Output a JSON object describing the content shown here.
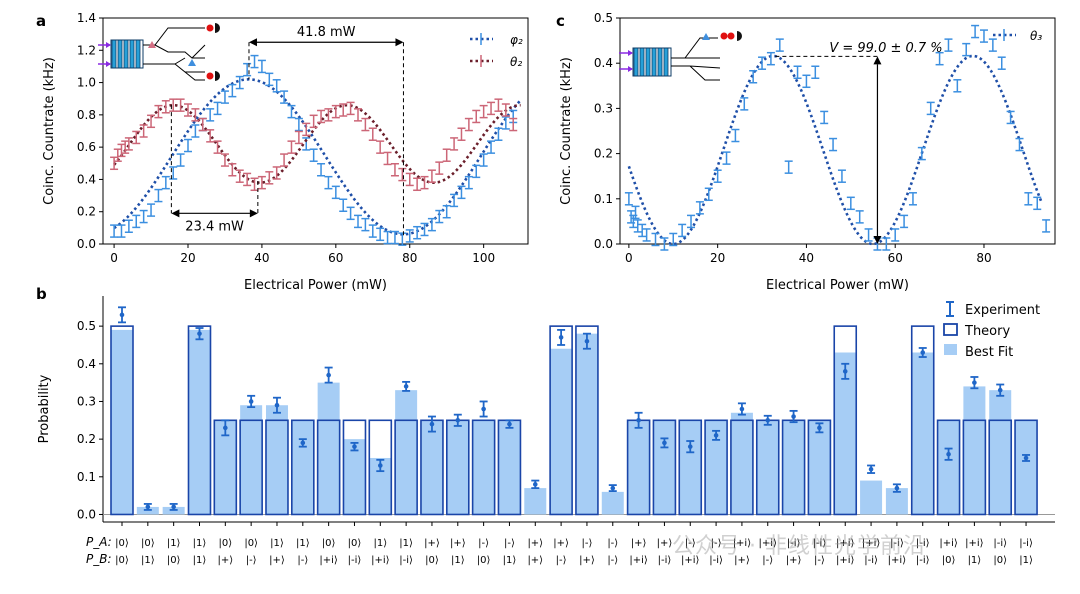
{
  "watermark": "公众号 · 非线性光学前沿",
  "colors": {
    "blue_exp": "#3b8fe0",
    "blue_fit": "#1f4fa8",
    "red_exp": "#cc6677",
    "red_fit": "#6b1f2b",
    "bar_exp": "#1f66c8",
    "bar_theory": "#1a45a8",
    "bar_fit": "#a6cdf5",
    "laser": "#8a2be2",
    "dot_red": "#e01010"
  },
  "chart_data": [
    {
      "panel": "a",
      "type": "line",
      "xlabel": "Electrical Power (mW)",
      "ylabel": "Coinc. Countrate (kHz)",
      "xlim": [
        -3,
        112
      ],
      "ylim": [
        0,
        1.4
      ],
      "xticks": [
        0,
        20,
        40,
        60,
        80,
        100
      ],
      "yticks": [
        0.0,
        0.2,
        0.4,
        0.6,
        0.8,
        1.0,
        1.2,
        1.4
      ],
      "legend": [
        "φ₂",
        "θ₂"
      ],
      "annotations": {
        "period_label": "41.8 mW",
        "period_x": [
          36.5,
          78.3
        ],
        "period_y": 1.25,
        "shift_label": "23.4 mW",
        "shift_x": [
          15.5,
          38.9
        ],
        "shift_y": 0.19
      },
      "series": [
        {
          "name": "φ₂",
          "color": "#3b8fe0",
          "fit_color": "#1f4fa8",
          "x": [
            0,
            2,
            4,
            6,
            8,
            10,
            12,
            14,
            16,
            18,
            20,
            22,
            24,
            26,
            28,
            30,
            32,
            34,
            36,
            38,
            40,
            42,
            44,
            46,
            48,
            50,
            52,
            54,
            56,
            58,
            60,
            62,
            64,
            66,
            68,
            70,
            72,
            74,
            76,
            78,
            80,
            82,
            84,
            86,
            88,
            90,
            92,
            94,
            96,
            98,
            100,
            102,
            104,
            106,
            108
          ],
          "y": [
            0.08,
            0.08,
            0.11,
            0.14,
            0.17,
            0.21,
            0.3,
            0.38,
            0.44,
            0.52,
            0.61,
            0.7,
            0.74,
            0.8,
            0.84,
            0.91,
            0.95,
            1.0,
            1.08,
            1.13,
            1.1,
            1.02,
            0.98,
            0.91,
            0.82,
            0.74,
            0.62,
            0.55,
            0.46,
            0.38,
            0.32,
            0.24,
            0.19,
            0.14,
            0.12,
            0.08,
            0.06,
            0.04,
            0.04,
            0.03,
            0.05,
            0.07,
            0.09,
            0.12,
            0.17,
            0.2,
            0.27,
            0.32,
            0.38,
            0.45,
            0.52,
            0.6,
            0.68,
            0.75,
            0.79
          ],
          "fit": {
            "mean": 0.54,
            "amp": 0.48,
            "center": 36.4,
            "period": 83.6
          }
        },
        {
          "name": "θ₂",
          "color": "#cc6677",
          "fit_color": "#6b1f2b",
          "x": [
            0,
            1,
            2,
            3,
            4,
            6,
            8,
            10,
            12,
            14,
            16,
            18,
            20,
            22,
            24,
            26,
            28,
            30,
            32,
            34,
            36,
            38,
            40,
            42,
            44,
            46,
            48,
            50,
            52,
            54,
            56,
            58,
            60,
            62,
            64,
            66,
            68,
            70,
            72,
            74,
            76,
            78,
            80,
            82,
            84,
            86,
            88,
            90,
            92,
            94,
            96,
            98,
            100,
            102,
            104,
            106,
            108
          ],
          "y": [
            0.5,
            0.55,
            0.58,
            0.6,
            0.62,
            0.66,
            0.7,
            0.76,
            0.82,
            0.85,
            0.86,
            0.86,
            0.83,
            0.8,
            0.74,
            0.67,
            0.6,
            0.52,
            0.46,
            0.42,
            0.4,
            0.37,
            0.38,
            0.41,
            0.44,
            0.52,
            0.6,
            0.66,
            0.71,
            0.76,
            0.79,
            0.8,
            0.82,
            0.83,
            0.84,
            0.8,
            0.74,
            0.68,
            0.6,
            0.53,
            0.46,
            0.43,
            0.4,
            0.37,
            0.38,
            0.42,
            0.47,
            0.55,
            0.62,
            0.68,
            0.74,
            0.79,
            0.82,
            0.84,
            0.86,
            0.83,
            0.74
          ],
          "fit": {
            "mean": 0.62,
            "amp": 0.24,
            "center": 16.0,
            "period": 47.0
          }
        }
      ]
    },
    {
      "panel": "c",
      "type": "line",
      "xlabel": "Electrical Power (mW)",
      "ylabel": "Coinc. Countrate (kHz)",
      "xlim": [
        -2,
        96
      ],
      "ylim": [
        0,
        0.5
      ],
      "xticks": [
        0,
        20,
        40,
        60,
        80
      ],
      "yticks": [
        0.0,
        0.1,
        0.2,
        0.3,
        0.4,
        0.5
      ],
      "legend": [
        "θ₃"
      ],
      "annotations": {
        "visibility_label": "V = 99.0 ± 0.7 %",
        "arrow_x": 56,
        "arrow_y": [
          0.0,
          0.415
        ]
      },
      "series": [
        {
          "name": "θ₃",
          "color": "#3b8fe0",
          "fit_color": "#1f4fa8",
          "x": [
            0,
            0.5,
            1,
            1.5,
            2,
            3,
            4,
            6,
            8,
            10,
            12,
            14,
            16,
            18,
            20,
            22,
            24,
            26,
            28,
            30,
            32,
            34,
            36,
            38,
            40,
            42,
            44,
            46,
            48,
            50,
            52,
            54,
            56,
            58,
            60,
            62,
            64,
            66,
            68,
            70,
            72,
            74,
            76,
            78,
            80,
            82,
            84,
            86,
            88,
            90,
            92,
            94
          ],
          "y": [
            0.1,
            0.06,
            0.05,
            0.07,
            0.04,
            0.03,
            0.02,
            0.01,
            0.0,
            0.01,
            0.03,
            0.05,
            0.08,
            0.11,
            0.15,
            0.19,
            0.24,
            0.31,
            0.37,
            0.4,
            0.41,
            0.44,
            0.17,
            0.38,
            0.36,
            0.38,
            0.28,
            0.22,
            0.15,
            0.09,
            0.06,
            0.02,
            0.0,
            0.0,
            0.02,
            0.05,
            0.1,
            0.2,
            0.3,
            0.41,
            0.44,
            0.35,
            0.43,
            0.47,
            0.46,
            0.44,
            0.4,
            0.28,
            0.22,
            0.1,
            0.09,
            0.04
          ],
          "fit": {
            "mean": 0.208,
            "amp": 0.208,
            "center": 32.5,
            "period": 45.0
          }
        }
      ]
    },
    {
      "panel": "b",
      "type": "bar",
      "ylabel": "Probability",
      "ylim": [
        -0.02,
        0.58
      ],
      "yticks": [
        0.0,
        0.1,
        0.2,
        0.3,
        0.4,
        0.5
      ],
      "legend": [
        "Experiment",
        "Theory",
        "Best Fit"
      ],
      "row_labels": [
        "P_A:",
        "P_B:"
      ],
      "pa": [
        "|0⟩",
        "|0⟩",
        "|1⟩",
        "|1⟩",
        "|0⟩",
        "|0⟩",
        "|1⟩",
        "|1⟩",
        "|0⟩",
        "|0⟩",
        "|1⟩",
        "|1⟩",
        "|+⟩",
        "|+⟩",
        "|-⟩",
        "|-⟩",
        "|+⟩",
        "|+⟩",
        "|-⟩",
        "|-⟩",
        "|+⟩",
        "|+⟩",
        "|-⟩",
        "|-⟩",
        "|+i⟩",
        "|+i⟩",
        "|-i⟩",
        "|-i⟩",
        "|+i⟩",
        "|+i⟩",
        "|-i⟩",
        "|-i⟩",
        "|+i⟩",
        "|+i⟩",
        "|-i⟩",
        "|-i⟩"
      ],
      "pb": [
        "|0⟩",
        "|1⟩",
        "|0⟩",
        "|1⟩",
        "|+⟩",
        "|-⟩",
        "|+⟩",
        "|-⟩",
        "|+i⟩",
        "|-i⟩",
        "|+i⟩",
        "|-i⟩",
        "|0⟩",
        "|1⟩",
        "|0⟩",
        "|1⟩",
        "|+⟩",
        "|-⟩",
        "|+⟩",
        "|-⟩",
        "|+i⟩",
        "|-i⟩",
        "|+i⟩",
        "|-i⟩",
        "|+⟩",
        "|-⟩",
        "|+⟩",
        "|-⟩",
        "|+i⟩",
        "|-i⟩",
        "|+i⟩",
        "|-i⟩",
        "|0⟩",
        "|1⟩",
        "|0⟩",
        "|1⟩"
      ],
      "theory": [
        0.5,
        0,
        0,
        0.5,
        0.25,
        0.25,
        0.25,
        0.25,
        0.25,
        0.25,
        0.25,
        0.25,
        0.25,
        0.25,
        0.25,
        0.25,
        0,
        0.5,
        0.5,
        0,
        0.25,
        0.25,
        0.25,
        0.25,
        0.25,
        0.25,
        0.25,
        0.25,
        0.5,
        0,
        0,
        0.5,
        0.25,
        0.25,
        0.25,
        0.25
      ],
      "fit": [
        0.49,
        0.02,
        0.02,
        0.49,
        0.25,
        0.29,
        0.29,
        0.25,
        0.35,
        0.2,
        0.15,
        0.33,
        0.25,
        0.25,
        0.25,
        0.25,
        0.07,
        0.44,
        0.48,
        0.06,
        0.25,
        0.25,
        0.25,
        0.25,
        0.27,
        0.25,
        0.25,
        0.25,
        0.43,
        0.09,
        0.07,
        0.43,
        0.25,
        0.34,
        0.33,
        0.25
      ],
      "experiment": [
        0.53,
        0.02,
        0.02,
        0.48,
        0.23,
        0.3,
        0.29,
        0.19,
        0.37,
        0.18,
        0.13,
        0.34,
        0.24,
        0.25,
        0.28,
        0.24,
        0.08,
        0.47,
        0.46,
        0.07,
        0.25,
        0.19,
        0.18,
        0.21,
        0.28,
        0.25,
        0.26,
        0.23,
        0.38,
        0.12,
        0.07,
        0.43,
        0.16,
        0.35,
        0.33,
        0.15
      ],
      "error": [
        0.02,
        0.005,
        0.005,
        0.015,
        0.02,
        0.015,
        0.02,
        0.01,
        0.02,
        0.01,
        0.015,
        0.012,
        0.02,
        0.015,
        0.02,
        0.01,
        0.01,
        0.02,
        0.02,
        0.005,
        0.02,
        0.012,
        0.015,
        0.012,
        0.015,
        0.012,
        0.015,
        0.012,
        0.02,
        0.01,
        0.01,
        0.012,
        0.015,
        0.015,
        0.015,
        0.008
      ]
    }
  ]
}
